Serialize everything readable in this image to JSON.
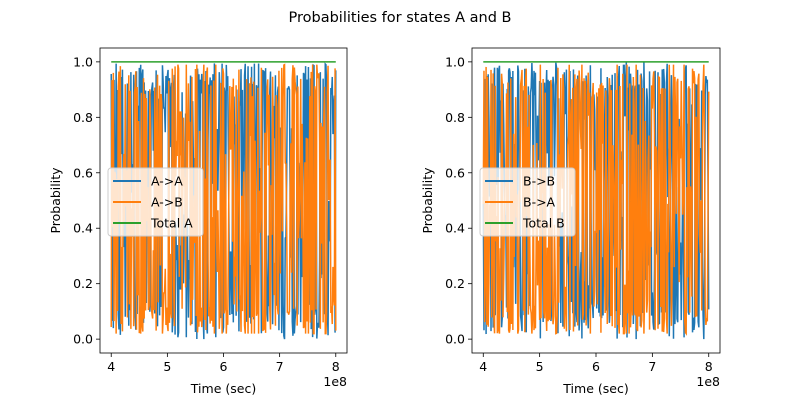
{
  "figure": {
    "title": "Probabilities for states A and B"
  },
  "chart_data": [
    {
      "type": "line",
      "xlabel": "Time (sec)",
      "ylabel": "Probability",
      "x_offset_label": "1e8",
      "xlim": [
        4,
        8
      ],
      "ylim": [
        0,
        1
      ],
      "x_ticks": [
        "4",
        "5",
        "6",
        "7",
        "8"
      ],
      "y_ticks": [
        "0.0",
        "0.2",
        "0.4",
        "0.6",
        "0.8",
        "1.0"
      ],
      "legend_position": "center-left",
      "grid": false,
      "series": [
        {
          "name": "A->A",
          "color": "#1f77b4",
          "description_values": {
            "min": 0.0,
            "max": 1.0,
            "oscillating": true
          }
        },
        {
          "name": "A->B",
          "color": "#ff7f0e",
          "description_values": {
            "min": 0.02,
            "max": 0.99,
            "oscillating": true
          }
        },
        {
          "name": "Total A",
          "color": "#2ca02c",
          "constant_value": 1.0
        }
      ]
    },
    {
      "type": "line",
      "xlabel": "Time (sec)",
      "ylabel": "Probability",
      "x_offset_label": "1e8",
      "xlim": [
        4,
        8
      ],
      "ylim": [
        0,
        1
      ],
      "x_ticks": [
        "4",
        "5",
        "6",
        "7",
        "8"
      ],
      "y_ticks": [
        "0.0",
        "0.2",
        "0.4",
        "0.6",
        "0.8",
        "1.0"
      ],
      "legend_position": "center-left",
      "grid": false,
      "series": [
        {
          "name": "B->B",
          "color": "#1f77b4",
          "description_values": {
            "min": 0.0,
            "max": 1.0,
            "oscillating": true
          }
        },
        {
          "name": "B->A",
          "color": "#ff7f0e",
          "description_values": {
            "min": 0.03,
            "max": 1.0,
            "oscillating": true
          }
        },
        {
          "name": "Total B",
          "color": "#2ca02c",
          "constant_value": 1.0
        }
      ]
    }
  ]
}
